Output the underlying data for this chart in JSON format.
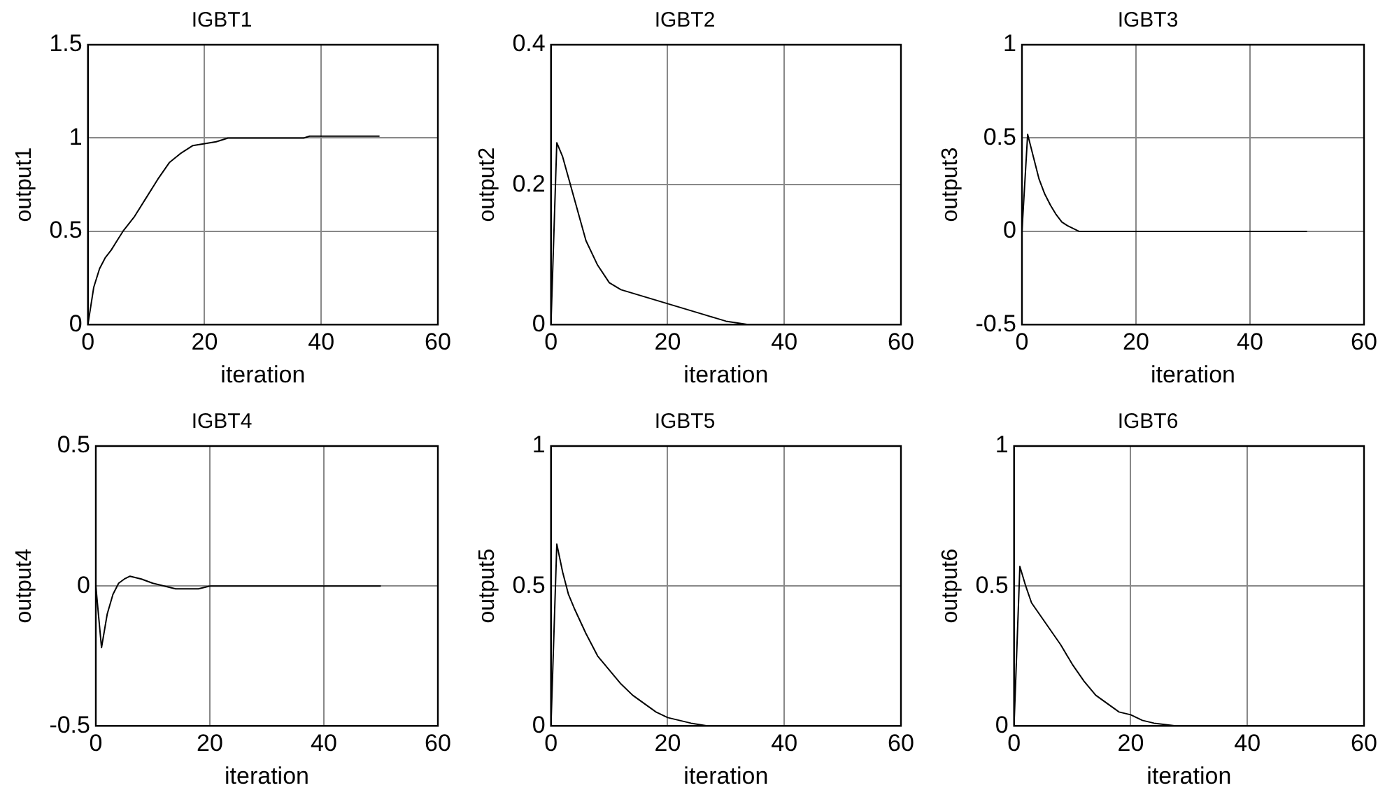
{
  "chart_data": [
    {
      "type": "line",
      "title": "IGBT1",
      "xlabel": "iteration",
      "ylabel": "output1",
      "x": [
        0,
        1,
        2,
        3,
        4,
        5,
        6,
        8,
        10,
        12,
        14,
        16,
        18,
        20,
        22,
        24,
        30,
        37,
        38,
        50
      ],
      "series": [
        {
          "color": "#000000",
          "values": [
            0,
            0.2,
            0.3,
            0.36,
            0.4,
            0.45,
            0.5,
            0.58,
            0.68,
            0.78,
            0.87,
            0.92,
            0.96,
            0.97,
            0.98,
            1,
            1,
            1,
            1.01,
            1.01
          ]
        }
      ],
      "xlim": [
        0,
        60
      ],
      "xticks": [
        0,
        20,
        40,
        60
      ],
      "ylim": [
        0,
        1.5
      ],
      "yticks": [
        0,
        0.5,
        1,
        1.5
      ],
      "grid": true,
      "legend": false,
      "marker": "none",
      "line_style": "solid"
    },
    {
      "type": "line",
      "title": "IGBT2",
      "xlabel": "iteration",
      "ylabel": "output2",
      "x": [
        0,
        1,
        2,
        3,
        4,
        5,
        6,
        8,
        10,
        12,
        14,
        16,
        18,
        20,
        22,
        24,
        26,
        28,
        30,
        34,
        40,
        50
      ],
      "series": [
        {
          "color": "#000000",
          "values": [
            0,
            0.26,
            0.24,
            0.21,
            0.18,
            0.15,
            0.12,
            0.085,
            0.06,
            0.05,
            0.045,
            0.04,
            0.035,
            0.03,
            0.025,
            0.02,
            0.015,
            0.01,
            0.005,
            0,
            0,
            0
          ]
        }
      ],
      "xlim": [
        0,
        60
      ],
      "xticks": [
        0,
        20,
        40,
        60
      ],
      "ylim": [
        0,
        0.4
      ],
      "yticks": [
        0,
        0.2,
        0.4
      ],
      "grid": true,
      "legend": false,
      "marker": "none",
      "line_style": "solid"
    },
    {
      "type": "line",
      "title": "IGBT3",
      "xlabel": "iteration",
      "ylabel": "output3",
      "x": [
        0,
        1,
        2,
        3,
        4,
        5,
        6,
        7,
        8,
        10,
        50
      ],
      "series": [
        {
          "color": "#000000",
          "values": [
            0,
            0.52,
            0.4,
            0.28,
            0.2,
            0.14,
            0.09,
            0.05,
            0.03,
            0,
            0
          ]
        }
      ],
      "xlim": [
        0,
        60
      ],
      "xticks": [
        0,
        20,
        40,
        60
      ],
      "ylim": [
        -0.5,
        1
      ],
      "yticks": [
        -0.5,
        0,
        0.5,
        1
      ],
      "grid": true,
      "legend": false,
      "marker": "none",
      "line_style": "solid"
    },
    {
      "type": "line",
      "title": "IGBT4",
      "xlabel": "iteration",
      "ylabel": "output4",
      "x": [
        0,
        1,
        2,
        3,
        4,
        5,
        6,
        7,
        8,
        10,
        12,
        14,
        18,
        20,
        50
      ],
      "series": [
        {
          "color": "#000000",
          "values": [
            0,
            -0.22,
            -0.1,
            -0.03,
            0.01,
            0.025,
            0.035,
            0.03,
            0.025,
            0.01,
            0,
            -0.01,
            -0.01,
            0,
            0
          ]
        }
      ],
      "xlim": [
        0,
        60
      ],
      "xticks": [
        0,
        20,
        40,
        60
      ],
      "ylim": [
        -0.5,
        0.5
      ],
      "yticks": [
        -0.5,
        0,
        0.5
      ],
      "grid": true,
      "legend": false,
      "marker": "none",
      "line_style": "solid"
    },
    {
      "type": "line",
      "title": "IGBT5",
      "xlabel": "iteration",
      "ylabel": "output5",
      "x": [
        0,
        1,
        2,
        3,
        4,
        6,
        8,
        10,
        12,
        14,
        16,
        18,
        20,
        22,
        24,
        27,
        50
      ],
      "series": [
        {
          "color": "#000000",
          "values": [
            0,
            0.65,
            0.55,
            0.47,
            0.42,
            0.33,
            0.25,
            0.2,
            0.15,
            0.11,
            0.08,
            0.05,
            0.03,
            0.02,
            0.01,
            0,
            0
          ]
        }
      ],
      "xlim": [
        0,
        60
      ],
      "xticks": [
        0,
        20,
        40,
        60
      ],
      "ylim": [
        0,
        1
      ],
      "yticks": [
        0,
        0.5,
        1
      ],
      "grid": true,
      "legend": false,
      "marker": "none",
      "line_style": "solid"
    },
    {
      "type": "line",
      "title": "IGBT6",
      "xlabel": "iteration",
      "ylabel": "output6",
      "x": [
        0,
        1,
        2,
        3,
        4,
        6,
        8,
        10,
        12,
        14,
        16,
        18,
        20,
        22,
        24,
        28,
        50
      ],
      "series": [
        {
          "color": "#000000",
          "values": [
            0,
            0.57,
            0.5,
            0.44,
            0.41,
            0.35,
            0.29,
            0.22,
            0.16,
            0.11,
            0.08,
            0.05,
            0.04,
            0.02,
            0.01,
            0,
            0
          ]
        }
      ],
      "xlim": [
        0,
        60
      ],
      "xticks": [
        0,
        20,
        40,
        60
      ],
      "ylim": [
        0,
        1
      ],
      "yticks": [
        0,
        0.5,
        1
      ],
      "grid": true,
      "legend": false,
      "marker": "none",
      "line_style": "solid"
    }
  ]
}
